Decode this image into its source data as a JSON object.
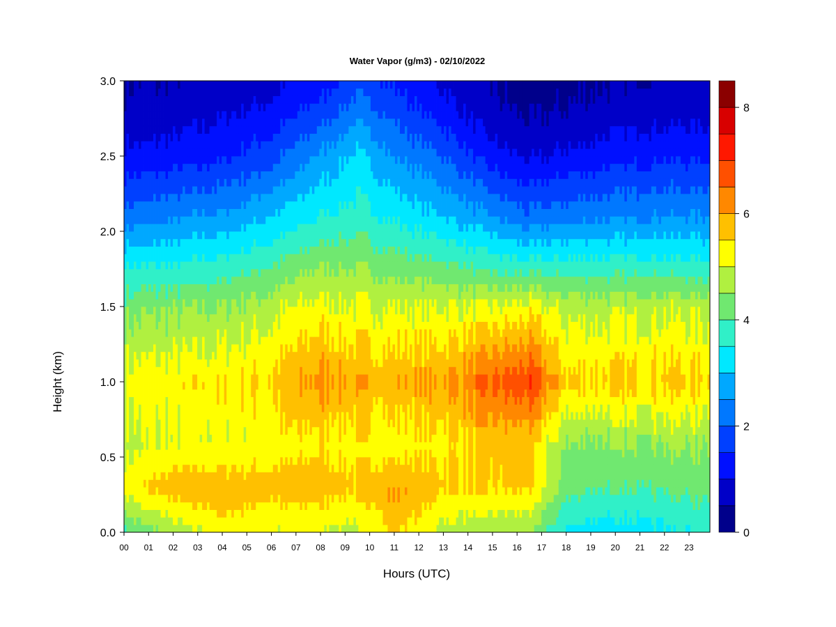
{
  "chart_data": {
    "type": "heatmap",
    "title": "Water Vapor (g/m3) - 02/10/2022",
    "xlabel": "Hours (UTC)",
    "ylabel": "Height (km)",
    "xlim": [
      0,
      23.85
    ],
    "ylim": [
      0,
      3.0
    ],
    "x_ticks": [
      "00",
      "01",
      "02",
      "03",
      "04",
      "05",
      "06",
      "07",
      "08",
      "09",
      "10",
      "11",
      "12",
      "13",
      "14",
      "15",
      "16",
      "17",
      "18",
      "19",
      "20",
      "21",
      "22",
      "23"
    ],
    "y_ticks": [
      "0.0",
      "0.5",
      "1.0",
      "1.5",
      "2.0",
      "2.5",
      "3.0"
    ],
    "colorbar": {
      "range": [
        0,
        8.5
      ],
      "ticks": [
        "0",
        "2",
        "4",
        "6",
        "8"
      ],
      "tick_values": [
        0,
        2,
        4,
        6,
        8
      ],
      "levels": [
        0,
        0.5,
        1.0,
        1.5,
        2.0,
        2.5,
        3.0,
        3.5,
        4.0,
        4.5,
        5.0,
        5.5,
        6.0,
        6.5,
        7.0,
        7.5,
        8.0,
        8.5
      ],
      "colors": [
        "#00008b",
        "#0000c8",
        "#0010ff",
        "#0040ff",
        "#0078ff",
        "#00a8ff",
        "#00e8ff",
        "#30f0c8",
        "#70e870",
        "#b0f040",
        "#ffff00",
        "#ffc000",
        "#ff8800",
        "#ff5000",
        "#ff1800",
        "#d80000",
        "#8b0000"
      ]
    },
    "profiles": [
      {
        "hour": 0,
        "h": [
          0.0,
          0.3,
          0.6,
          1.0,
          1.5,
          1.8,
          2.1,
          2.5,
          2.8,
          3.0
        ],
        "v": [
          4.0,
          5.3,
          4.8,
          5.2,
          4.3,
          3.4,
          2.2,
          1.1,
          0.6,
          0.5
        ]
      },
      {
        "hour": 2,
        "h": [
          0.0,
          0.3,
          0.6,
          1.0,
          1.5,
          1.8,
          2.1,
          2.5,
          2.8,
          3.0
        ],
        "v": [
          4.6,
          5.8,
          5.0,
          5.3,
          4.4,
          3.4,
          2.4,
          1.2,
          0.7,
          0.5
        ]
      },
      {
        "hour": 4,
        "h": [
          0.0,
          0.25,
          0.6,
          1.0,
          1.5,
          1.8,
          2.1,
          2.5,
          2.8,
          3.0
        ],
        "v": [
          5.2,
          5.9,
          5.1,
          5.4,
          4.5,
          3.6,
          2.6,
          1.4,
          0.9,
          0.7
        ]
      },
      {
        "hour": 6,
        "h": [
          0.0,
          0.3,
          0.6,
          1.0,
          1.5,
          1.8,
          2.1,
          2.5,
          2.8,
          3.0
        ],
        "v": [
          5.0,
          5.7,
          5.2,
          5.6,
          4.8,
          3.9,
          3.0,
          1.8,
          1.1,
          0.8
        ]
      },
      {
        "hour": 8,
        "h": [
          0.0,
          0.3,
          0.6,
          1.0,
          1.5,
          1.8,
          2.1,
          2.5,
          2.8,
          3.0
        ],
        "v": [
          5.0,
          5.8,
          5.4,
          6.2,
          5.2,
          4.4,
          3.5,
          2.6,
          1.7,
          1.2
        ]
      },
      {
        "hour": 9.5,
        "h": [
          0.0,
          0.3,
          0.6,
          1.0,
          1.5,
          1.8,
          2.1,
          2.5,
          2.8,
          3.0
        ],
        "v": [
          4.8,
          5.6,
          5.3,
          5.9,
          5.0,
          4.4,
          3.7,
          3.1,
          2.3,
          1.8
        ]
      },
      {
        "hour": 11,
        "h": [
          0.0,
          0.25,
          0.6,
          1.0,
          1.5,
          1.8,
          2.1,
          2.5,
          2.8,
          3.0
        ],
        "v": [
          5.6,
          6.1,
          5.2,
          5.9,
          5.0,
          4.2,
          3.4,
          2.5,
          1.8,
          1.4
        ]
      },
      {
        "hour": 13,
        "h": [
          0.0,
          0.3,
          0.6,
          1.0,
          1.5,
          1.8,
          2.1,
          2.5,
          2.8,
          3.0
        ],
        "v": [
          4.8,
          5.6,
          5.4,
          6.0,
          5.0,
          4.0,
          3.0,
          2.0,
          1.2,
          0.9
        ]
      },
      {
        "hour": 15,
        "h": [
          0.0,
          0.3,
          0.6,
          1.0,
          1.5,
          1.8,
          2.1,
          2.5,
          2.8,
          3.0
        ],
        "v": [
          4.6,
          5.5,
          5.6,
          6.6,
          5.0,
          3.7,
          2.5,
          1.2,
          0.6,
          0.5
        ]
      },
      {
        "hour": 16.5,
        "h": [
          0.0,
          0.3,
          0.6,
          1.0,
          1.5,
          1.8,
          2.1,
          2.5,
          2.8,
          3.0
        ],
        "v": [
          4.5,
          5.6,
          5.6,
          6.9,
          5.2,
          3.5,
          2.1,
          0.9,
          0.4,
          0.3
        ]
      },
      {
        "hour": 18,
        "h": [
          0.0,
          0.3,
          0.6,
          1.0,
          1.5,
          1.8,
          2.1,
          2.5,
          2.8,
          3.0
        ],
        "v": [
          3.4,
          4.2,
          4.5,
          5.6,
          4.8,
          3.6,
          2.3,
          1.1,
          0.5,
          0.4
        ]
      },
      {
        "hour": 20,
        "h": [
          0.0,
          0.3,
          0.6,
          1.0,
          1.5,
          1.8,
          2.1,
          2.5,
          2.8,
          3.0
        ],
        "v": [
          3.2,
          4.0,
          4.5,
          5.6,
          4.8,
          3.6,
          2.4,
          1.3,
          0.7,
          0.5
        ]
      },
      {
        "hour": 22,
        "h": [
          0.0,
          0.3,
          0.6,
          1.0,
          1.5,
          1.8,
          2.1,
          2.5,
          2.8,
          3.0
        ],
        "v": [
          3.4,
          4.1,
          4.6,
          5.7,
          4.9,
          3.6,
          2.5,
          1.4,
          0.8,
          0.6
        ]
      },
      {
        "hour": 23.85,
        "h": [
          0.0,
          0.3,
          0.6,
          1.0,
          1.5,
          1.8,
          2.1,
          2.5,
          2.8,
          3.0
        ],
        "v": [
          3.6,
          4.2,
          4.6,
          5.5,
          4.8,
          3.5,
          2.5,
          1.4,
          0.8,
          0.6
        ]
      }
    ]
  }
}
